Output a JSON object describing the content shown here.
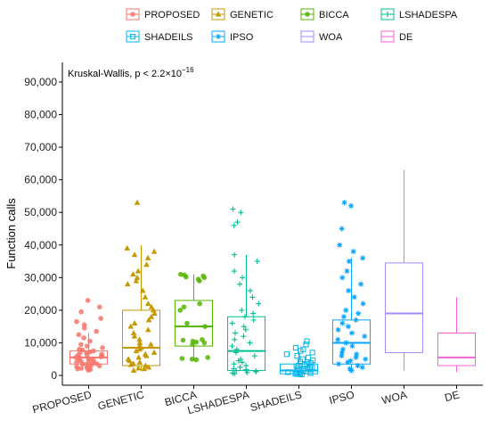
{
  "chart_data": {
    "type": "box",
    "ylabel": "Function calls",
    "annotation_prefix": "Kruskal-Wallis, p < 2.2",
    "annotation_mult": "×10",
    "annotation_exp": "−16",
    "y_ticks": [
      0,
      10000,
      20000,
      30000,
      40000,
      50000,
      60000,
      70000,
      80000,
      90000
    ],
    "y_tick_labels": [
      "0",
      "10,000",
      "20,000",
      "30,000",
      "40,000",
      "50,000",
      "60,000",
      "70,000",
      "80,000",
      "90,000"
    ],
    "ylim": [
      -3000,
      96000
    ],
    "legend_position": "top",
    "series": [
      {
        "name": "PROPOSED",
        "color": "#F8766D",
        "marker": "circle",
        "q1": 3500,
        "median": 5500,
        "q3": 7500,
        "whisker_low": 1500,
        "whisker_high": 13000,
        "points": [
          1600,
          1800,
          2000,
          2200,
          2300,
          2500,
          2700,
          2900,
          3100,
          3300,
          3500,
          3600,
          3800,
          4000,
          4200,
          4400,
          4600,
          4800,
          5000,
          5200,
          5400,
          5500,
          5700,
          5900,
          6100,
          6300,
          6500,
          6800,
          7000,
          7200,
          7500,
          7800,
          8000,
          8500,
          9000,
          9500,
          10500,
          11500,
          12500,
          13500,
          14500,
          15500,
          16500,
          17500,
          19500,
          21000,
          23000
        ]
      },
      {
        "name": "GENETIC",
        "color": "#C49A00",
        "marker": "triangle",
        "q1": 3000,
        "median": 8500,
        "q3": 20000,
        "whisker_low": 1500,
        "whisker_high": 40000,
        "points": [
          1500,
          2000,
          2200,
          2500,
          3000,
          3300,
          3600,
          4000,
          4500,
          5000,
          5500,
          6000,
          6500,
          7000,
          7500,
          8000,
          8500,
          9000,
          9500,
          10000,
          11000,
          12000,
          13000,
          14000,
          15000,
          16000,
          17000,
          18000,
          19000,
          20000,
          21000,
          22000,
          24000,
          26000,
          28000,
          29000,
          30000,
          31000,
          32000,
          34000,
          36000,
          37000,
          38000,
          39000,
          53000
        ]
      },
      {
        "name": "BICCA",
        "color": "#53B400",
        "marker": "circle",
        "q1": 9000,
        "median": 15000,
        "q3": 23000,
        "whisker_low": 4500,
        "whisker_high": 31000,
        "points": [
          4800,
          5000,
          5200,
          5500,
          9500,
          10000,
          10200,
          10500,
          10800,
          11000,
          15000,
          16000,
          20000,
          21000,
          22000,
          29000,
          29500,
          30000,
          30200,
          30500,
          30800,
          31000
        ]
      },
      {
        "name": "LSHADESPA",
        "color": "#00C094",
        "marker": "plus",
        "q1": 1500,
        "median": 7500,
        "q3": 18000,
        "whisker_low": 500,
        "whisker_high": 37000,
        "points": [
          500,
          700,
          900,
          1100,
          1300,
          1500,
          1800,
          2000,
          2500,
          3000,
          3500,
          4000,
          4500,
          5000,
          6000,
          7000,
          8000,
          9000,
          10000,
          11000,
          12000,
          13000,
          14000,
          15000,
          16000,
          17000,
          18000,
          19000,
          20000,
          22000,
          24000,
          26000,
          28000,
          30000,
          32000,
          35000,
          37000,
          46000,
          47000,
          50000,
          51000
        ]
      },
      {
        "name": "SHADEILS",
        "color": "#00B6EB",
        "marker": "square",
        "q1": 500,
        "median": 1500,
        "q3": 3500,
        "whisker_low": 200,
        "whisker_high": 7500,
        "points": [
          300,
          400,
          500,
          600,
          700,
          800,
          900,
          1000,
          1200,
          1400,
          1600,
          1800,
          2000,
          2200,
          2400,
          2600,
          2800,
          3000,
          3200,
          3500,
          3800,
          4200,
          4600,
          5000,
          5500,
          6000,
          6500,
          7000,
          7500,
          8000,
          8500,
          9500,
          10500
        ]
      },
      {
        "name": "IPSO",
        "color": "#06A4FF",
        "marker": "asterisk",
        "q1": 3500,
        "median": 10000,
        "q3": 17000,
        "whisker_low": 1500,
        "whisker_high": 36000,
        "points": [
          1500,
          2000,
          2500,
          3000,
          3500,
          4000,
          4500,
          5000,
          5500,
          6000,
          6500,
          7000,
          8000,
          9000,
          10000,
          11000,
          12000,
          13000,
          14000,
          15000,
          16000,
          17000,
          18000,
          19000,
          20000,
          22000,
          24000,
          26000,
          28000,
          30000,
          32000,
          35000,
          36000,
          38000,
          40000,
          45000,
          52000,
          53000
        ]
      },
      {
        "name": "WOA",
        "color": "#A58AFF",
        "marker": "none",
        "q1": 7000,
        "median": 19000,
        "q3": 34500,
        "whisker_low": 1500,
        "whisker_high": 63000,
        "points": []
      },
      {
        "name": "DE",
        "color": "#FB61D7",
        "marker": "none",
        "q1": 3000,
        "median": 5500,
        "q3": 13000,
        "whisker_low": 1000,
        "whisker_high": 24000,
        "points": []
      }
    ]
  }
}
